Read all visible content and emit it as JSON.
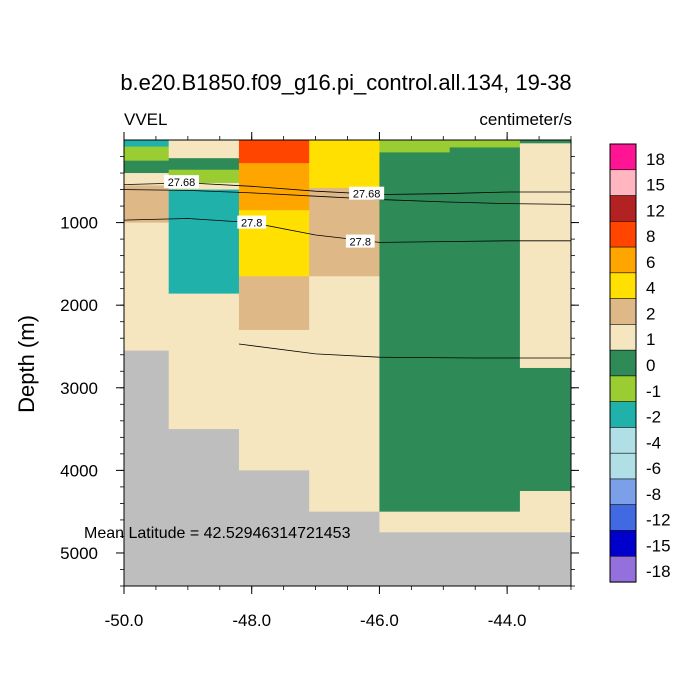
{
  "chart_data": {
    "type": "heatmap",
    "title": "b.e20.B1850.f09_g16.pi_control.all.134, 19-38",
    "left_label": "VVEL",
    "right_label": "centimeter/s",
    "ylabel": "Depth (m)",
    "xlabel": "",
    "annotation": "Mean Latitude = 42.52946314721453",
    "xlim": [
      -50.0,
      -43.0
    ],
    "ylim": [
      0,
      5400
    ],
    "x_ticks": [
      "-50.0",
      "-48.0",
      "-46.0",
      "-44.0"
    ],
    "x_tick_values": [
      -50,
      -48,
      -46,
      -44
    ],
    "y_ticks": [
      "1000",
      "2000",
      "3000",
      "4000",
      "5000"
    ],
    "y_tick_values": [
      1000,
      2000,
      3000,
      4000,
      5000
    ],
    "colorbar": {
      "labels": [
        "18",
        "15",
        "12",
        "8",
        "6",
        "4",
        "2",
        "1",
        "0",
        "-1",
        "-2",
        "-4",
        "-6",
        "-8",
        "-12",
        "-15",
        "-18"
      ],
      "colors": [
        "#ff1493",
        "#ffb6c1",
        "#b22222",
        "#ff4500",
        "#ffa500",
        "#ffe000",
        "#deb887",
        "#f5e6c0",
        "#2e8b57",
        "#9acd32",
        "#20b2aa",
        "#b0e0e6",
        "#b0e0e6",
        "#7b9fe8",
        "#4169e1",
        "#0000cd",
        "#9370db"
      ]
    },
    "colors": {
      "land": "#bebebe",
      "c_pos1": "#deb887",
      "c_zero": "#f5e6c0",
      "c_neg1": "#2e8b57",
      "c_neg2": "#9acd32",
      "c_neg4": "#20b2aa",
      "c_pos4": "#ffe000",
      "c_pos6": "#ffa500",
      "c_pos8": "#ff4500"
    },
    "cells": [
      {
        "x0": -50.0,
        "x1": -49.3,
        "y0": 0,
        "y1": 80,
        "color": "#20b2aa"
      },
      {
        "x0": -50.0,
        "x1": -49.3,
        "y0": 80,
        "y1": 250,
        "color": "#9acd32"
      },
      {
        "x0": -50.0,
        "x1": -49.3,
        "y0": 250,
        "y1": 400,
        "color": "#2e8b57"
      },
      {
        "x0": -50.0,
        "x1": -49.3,
        "y0": 400,
        "y1": 550,
        "color": "#f5e6c0"
      },
      {
        "x0": -50.0,
        "x1": -49.3,
        "y0": 550,
        "y1": 1000,
        "color": "#deb887"
      },
      {
        "x0": -50.0,
        "x1": -49.3,
        "y0": 1000,
        "y1": 2550,
        "color": "#f5e6c0"
      },
      {
        "x0": -50.0,
        "x1": -49.3,
        "y0": 2550,
        "y1": 5400,
        "color": "#bebebe"
      },
      {
        "x0": -49.3,
        "x1": -48.2,
        "y0": 0,
        "y1": 220,
        "color": "#f5e6c0"
      },
      {
        "x0": -49.3,
        "x1": -48.2,
        "y0": 220,
        "y1": 360,
        "color": "#2e8b57"
      },
      {
        "x0": -49.3,
        "x1": -48.2,
        "y0": 360,
        "y1": 520,
        "color": "#9acd32"
      },
      {
        "x0": -49.3,
        "x1": -48.2,
        "y0": 520,
        "y1": 600,
        "color": "#f5e6c0"
      },
      {
        "x0": -49.3,
        "x1": -48.2,
        "y0": 600,
        "y1": 1860,
        "color": "#20b2aa"
      },
      {
        "x0": -49.3,
        "x1": -48.2,
        "y0": 1860,
        "y1": 3500,
        "color": "#f5e6c0"
      },
      {
        "x0": -49.3,
        "x1": -48.2,
        "y0": 3500,
        "y1": 5400,
        "color": "#bebebe"
      },
      {
        "x0": -48.2,
        "x1": -47.1,
        "y0": 0,
        "y1": 280,
        "color": "#ff4500"
      },
      {
        "x0": -48.2,
        "x1": -47.1,
        "y0": 280,
        "y1": 850,
        "color": "#ffa500"
      },
      {
        "x0": -48.2,
        "x1": -47.1,
        "y0": 850,
        "y1": 1650,
        "color": "#ffe000"
      },
      {
        "x0": -48.2,
        "x1": -47.1,
        "y0": 1650,
        "y1": 2300,
        "color": "#deb887"
      },
      {
        "x0": -48.2,
        "x1": -47.1,
        "y0": 2300,
        "y1": 4000,
        "color": "#f5e6c0"
      },
      {
        "x0": -48.2,
        "x1": -47.1,
        "y0": 4000,
        "y1": 5400,
        "color": "#bebebe"
      },
      {
        "x0": -47.1,
        "x1": -46.0,
        "y0": 0,
        "y1": 580,
        "color": "#ffe000"
      },
      {
        "x0": -47.1,
        "x1": -46.0,
        "y0": 580,
        "y1": 1650,
        "color": "#deb887"
      },
      {
        "x0": -47.1,
        "x1": -46.0,
        "y0": 1650,
        "y1": 4500,
        "color": "#f5e6c0"
      },
      {
        "x0": -47.1,
        "x1": -46.0,
        "y0": 4500,
        "y1": 5400,
        "color": "#bebebe"
      },
      {
        "x0": -46.0,
        "x1": -44.9,
        "y0": 0,
        "y1": 150,
        "color": "#9acd32"
      },
      {
        "x0": -46.0,
        "x1": -44.9,
        "y0": 150,
        "y1": 4500,
        "color": "#2e8b57"
      },
      {
        "x0": -46.0,
        "x1": -44.9,
        "y0": 4500,
        "y1": 4750,
        "color": "#f5e6c0"
      },
      {
        "x0": -46.0,
        "x1": -44.9,
        "y0": 4750,
        "y1": 5400,
        "color": "#bebebe"
      },
      {
        "x0": -44.9,
        "x1": -43.8,
        "y0": 0,
        "y1": 90,
        "color": "#9acd32"
      },
      {
        "x0": -44.9,
        "x1": -43.8,
        "y0": 90,
        "y1": 4500,
        "color": "#2e8b57"
      },
      {
        "x0": -44.9,
        "x1": -43.8,
        "y0": 4500,
        "y1": 4750,
        "color": "#f5e6c0"
      },
      {
        "x0": -44.9,
        "x1": -43.8,
        "y0": 4750,
        "y1": 5400,
        "color": "#bebebe"
      },
      {
        "x0": -43.8,
        "x1": -43.0,
        "y0": 0,
        "y1": 40,
        "color": "#2e8b57"
      },
      {
        "x0": -43.8,
        "x1": -43.0,
        "y0": 40,
        "y1": 2760,
        "color": "#f5e6c0"
      },
      {
        "x0": -43.8,
        "x1": -43.0,
        "y0": 2760,
        "y1": 4250,
        "color": "#2e8b57"
      },
      {
        "x0": -43.8,
        "x1": -43.0,
        "y0": 4250,
        "y1": 4750,
        "color": "#f5e6c0"
      },
      {
        "x0": -43.8,
        "x1": -43.0,
        "y0": 4750,
        "y1": 5400,
        "color": "#bebebe"
      }
    ],
    "contours": [
      {
        "label": "27.68",
        "points": [
          [
            -50.0,
            540
          ],
          [
            -49.0,
            520
          ],
          [
            -48.0,
            560
          ],
          [
            -47.0,
            620
          ],
          [
            -46.0,
            660
          ],
          [
            -45.0,
            650
          ],
          [
            -44.0,
            630
          ],
          [
            -43.0,
            630
          ]
        ]
      },
      {
        "label": "",
        "points": [
          [
            -50.0,
            600
          ],
          [
            -49.0,
            610
          ],
          [
            -48.0,
            640
          ],
          [
            -47.0,
            680
          ],
          [
            -46.0,
            720
          ],
          [
            -45.0,
            750
          ],
          [
            -44.0,
            770
          ],
          [
            -43.0,
            780
          ]
        ]
      },
      {
        "label": "27.8",
        "points": [
          [
            -50.0,
            970
          ],
          [
            -49.0,
            950
          ],
          [
            -48.0,
            1000
          ],
          [
            -47.0,
            1150
          ],
          [
            -46.0,
            1240
          ],
          [
            -45.0,
            1230
          ],
          [
            -44.0,
            1220
          ],
          [
            -43.0,
            1220
          ]
        ]
      },
      {
        "label": "",
        "points": [
          [
            -48.2,
            2470
          ],
          [
            -47.0,
            2590
          ],
          [
            -46.0,
            2630
          ],
          [
            -44.5,
            2640
          ],
          [
            -43.0,
            2640
          ]
        ]
      }
    ],
    "contour_labels": [
      {
        "text": "27.68",
        "x": -49.1,
        "y": 510
      },
      {
        "text": "27.68",
        "x": -46.2,
        "y": 650
      },
      {
        "text": "27.8",
        "x": -48.0,
        "y": 1000
      },
      {
        "text": "27.8",
        "x": -46.3,
        "y": 1230
      }
    ]
  }
}
